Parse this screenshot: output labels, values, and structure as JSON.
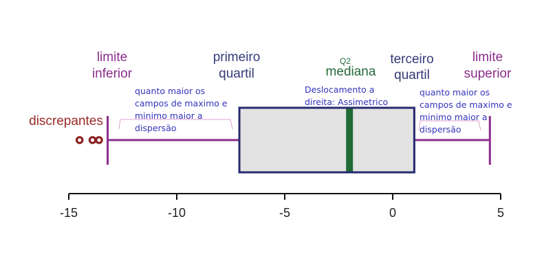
{
  "labels": {
    "outliers": "discrepantes",
    "lower_limit": [
      "limite",
      "inferior"
    ],
    "first_quartile": [
      "primeiro",
      "quartil"
    ],
    "q2": "Q2",
    "median": "mediana",
    "third_quartile": [
      "terceiro",
      "quartil"
    ],
    "upper_limit": [
      "limite",
      "superior"
    ]
  },
  "notes": {
    "left_whisker": [
      "quanto maior os",
      "campos de maximo e",
      "minimo maior a",
      "dispersão"
    ],
    "shift": [
      "Deslocamento a",
      "direita: Assimetrico"
    ],
    "right_whisker": [
      "quanto maior os",
      "campos de maximo e",
      "minimo maior a",
      "dispersão"
    ]
  },
  "chart_data": {
    "type": "box",
    "xlim": [
      -15,
      5
    ],
    "ticks": [
      "-15",
      "-10",
      "-5",
      "0",
      "5"
    ],
    "tick_values": [
      -15,
      -10,
      -5,
      0,
      5
    ],
    "box": {
      "lower_whisker": -13.2,
      "q1": -7.1,
      "median": -2.0,
      "q3": 1.0,
      "upper_whisker": 4.5,
      "outliers": [
        -14.5,
        -13.9,
        -13.6
      ]
    }
  },
  "colors": {
    "whisker": "#8b2c8c",
    "box_border": "#262a6e",
    "box_fill": "#e2e3e2",
    "median": "#1f6b35",
    "outlier": "#8c2121",
    "outlier_label": "#9a2a26",
    "quartile_label": "#343a78",
    "median_label": "#256b3a",
    "note": "#3333bb",
    "bracket": "#e0a0d0",
    "axis": "#111111"
  }
}
